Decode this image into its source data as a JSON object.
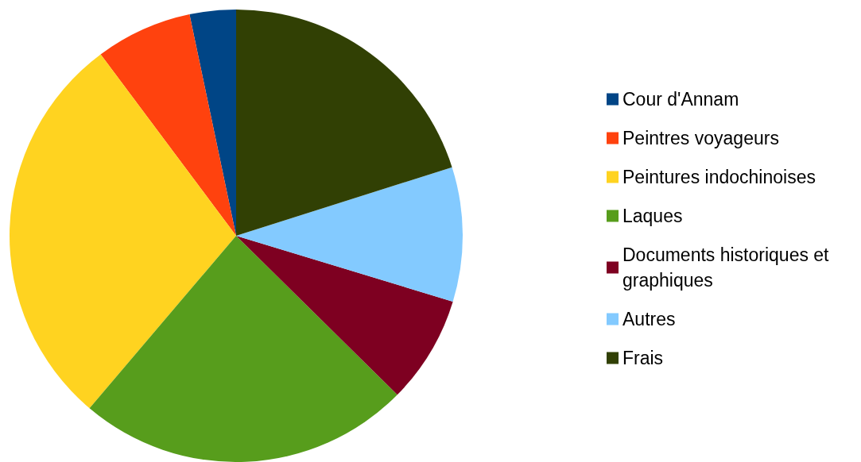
{
  "chart_data": {
    "type": "pie",
    "categories": [
      "Cour d'Annam",
      "Peintres voyageurs",
      "Peintures indochinoises",
      "Laques",
      "Documents historiques et graphiques",
      "Autres",
      "Frais"
    ],
    "values": [
      3.3,
      6.9,
      28.6,
      23.8,
      7.7,
      9.6,
      20.1
    ],
    "colors": [
      "#004586",
      "#ff420e",
      "#ffd320",
      "#579d1c",
      "#7e0021",
      "#83caff",
      "#314004"
    ],
    "legend": "right"
  }
}
